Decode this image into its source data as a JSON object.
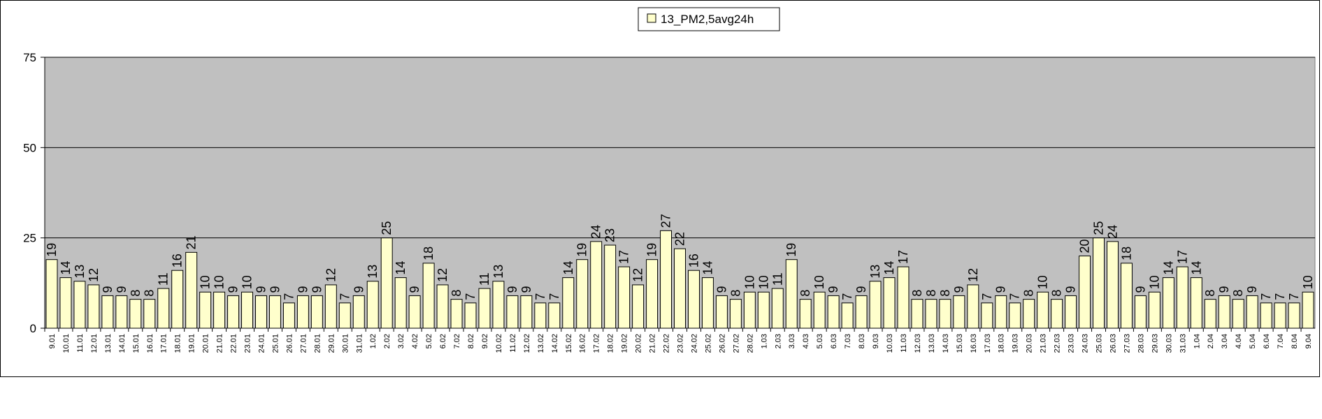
{
  "chart_data": {
    "type": "bar",
    "title": "",
    "xlabel": "",
    "ylabel": "",
    "ylim": [
      0,
      75
    ],
    "yticks": [
      0,
      25,
      50,
      75
    ],
    "grid": true,
    "legend_position": "top-center",
    "colors": {
      "plot_background": "#c0c0c0",
      "bar_fill": "#ffffcc",
      "bar_stroke": "#000000",
      "gridline": "#000000"
    },
    "categories": [
      "9.01",
      "10.01",
      "11.01",
      "12.01",
      "13.01",
      "14.01",
      "15.01",
      "16.01",
      "17.01",
      "18.01",
      "19.01",
      "20.01",
      "21.01",
      "22.01",
      "23.01",
      "24.01",
      "25.01",
      "26.01",
      "27.01",
      "28.01",
      "29.01",
      "30.01",
      "31.01",
      "1.02",
      "2.02",
      "3.02",
      "4.02",
      "5.02",
      "6.02",
      "7.02",
      "8.02",
      "9.02",
      "10.02",
      "11.02",
      "12.02",
      "13.02",
      "14.02",
      "15.02",
      "16.02",
      "17.02",
      "18.02",
      "19.02",
      "20.02",
      "21.02",
      "22.02",
      "23.02",
      "24.02",
      "25.02",
      "26.02",
      "27.02",
      "28.02",
      "1.03",
      "2.03",
      "3.03",
      "4.03",
      "5.03",
      "6.03",
      "7.03",
      "8.03",
      "9.03",
      "10.03",
      "11.03",
      "12.03",
      "13.03",
      "14.03",
      "15.03",
      "16.03",
      "17.03",
      "18.03",
      "19.03",
      "20.03",
      "21.03",
      "22.03",
      "23.03",
      "24.03",
      "25.03",
      "26.03",
      "27.03",
      "28.03",
      "29.03",
      "30.03",
      "31.03",
      "1.04",
      "2.04",
      "3.04",
      "4.04",
      "5.04",
      "6.04",
      "7.04",
      "8.04",
      "9.04"
    ],
    "series": [
      {
        "name": "13_PM2,5avg24h",
        "values": [
          19,
          14,
          13,
          12,
          9,
          9,
          8,
          8,
          11,
          16,
          21,
          10,
          10,
          9,
          10,
          9,
          9,
          7,
          9,
          9,
          12,
          7,
          9,
          13,
          25,
          14,
          9,
          18,
          12,
          8,
          7,
          11,
          13,
          9,
          9,
          7,
          7,
          14,
          19,
          24,
          23,
          17,
          12,
          19,
          27,
          22,
          16,
          14,
          9,
          8,
          10,
          10,
          11,
          19,
          8,
          10,
          9,
          7,
          9,
          13,
          14,
          17,
          8,
          8,
          8,
          9,
          12,
          7,
          9,
          7,
          8,
          10,
          8,
          9,
          20,
          25,
          24,
          18,
          9,
          10,
          14,
          17,
          14,
          8,
          9,
          8,
          9,
          7,
          7,
          7,
          10
        ]
      }
    ]
  }
}
